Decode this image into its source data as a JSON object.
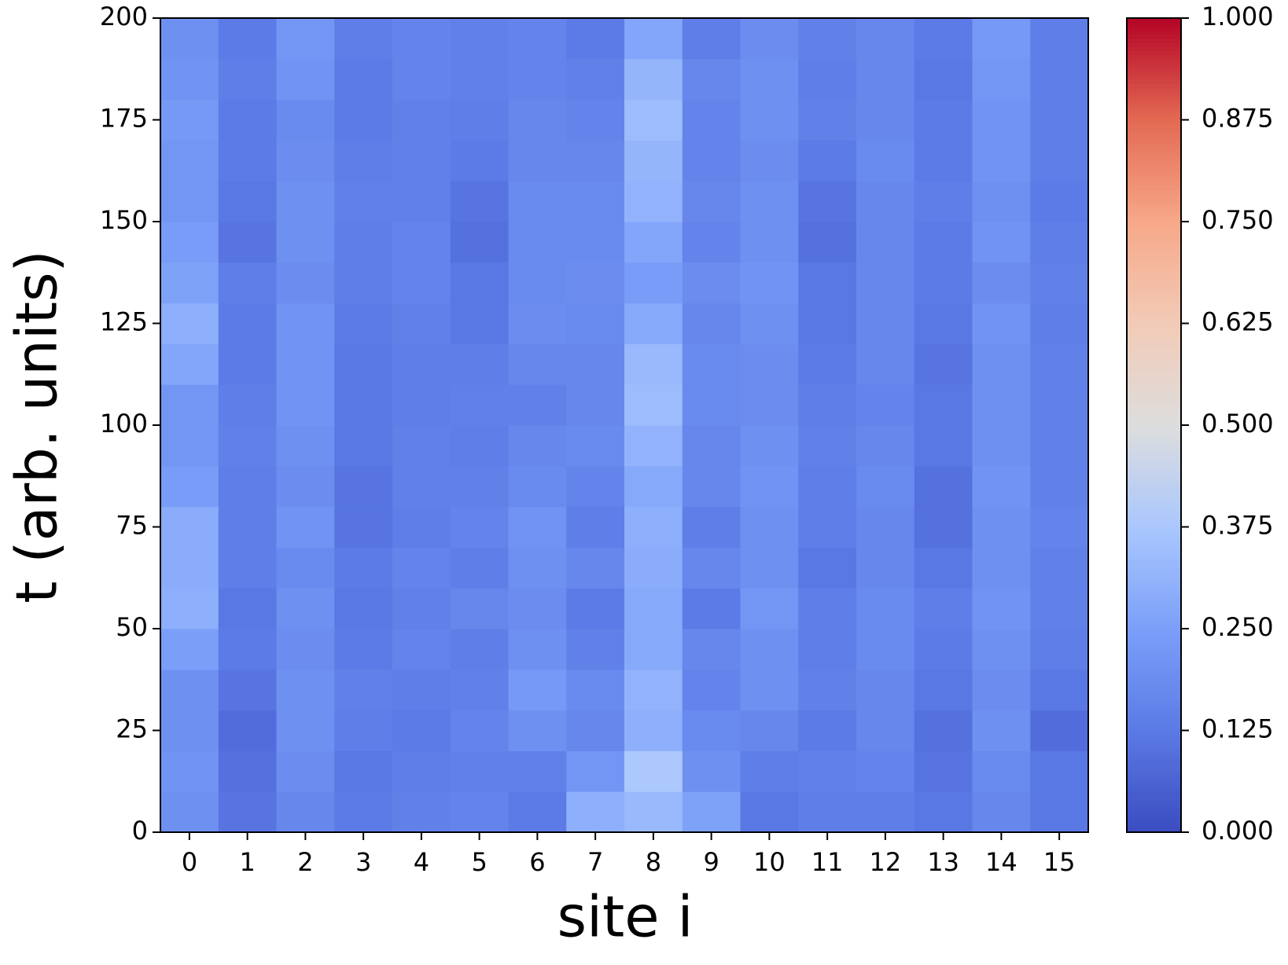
{
  "chart_data": {
    "type": "heatmap",
    "xlabel": "site i",
    "ylabel": "t (arb. units)",
    "colormap": "coolwarm",
    "x": [
      0,
      1,
      2,
      3,
      4,
      5,
      6,
      7,
      8,
      9,
      10,
      11,
      12,
      13,
      14,
      15
    ],
    "xlim": [
      -0.5,
      15.5
    ],
    "xticks": [
      0,
      1,
      2,
      3,
      4,
      5,
      6,
      7,
      8,
      9,
      10,
      11,
      12,
      13,
      14,
      15
    ],
    "y_bins": [
      0,
      10,
      20,
      30,
      40,
      50,
      60,
      70,
      80,
      90,
      100,
      110,
      120,
      130,
      140,
      150,
      160,
      170,
      180,
      190,
      200
    ],
    "ylim": [
      0,
      200
    ],
    "yticks": [
      0,
      25,
      50,
      75,
      100,
      125,
      150,
      175,
      200
    ],
    "clim": [
      0,
      1
    ],
    "cticks": [
      {
        "value": 0,
        "label": "0.000"
      },
      {
        "value": 0.125,
        "label": "0.125"
      },
      {
        "value": 0.25,
        "label": "0.250"
      },
      {
        "value": 0.375,
        "label": "0.375"
      },
      {
        "value": 0.5,
        "label": "0.500"
      },
      {
        "value": 0.625,
        "label": "0.625"
      },
      {
        "value": 0.75,
        "label": "0.750"
      },
      {
        "value": 0.875,
        "label": "0.875"
      },
      {
        "value": 1,
        "label": "1.000"
      }
    ],
    "z": [
      [
        0.2,
        0.11,
        0.17,
        0.13,
        0.15,
        0.16,
        0.13,
        0.3,
        0.33,
        0.26,
        0.12,
        0.14,
        0.14,
        0.12,
        0.17,
        0.12
      ],
      [
        0.21,
        0.1,
        0.19,
        0.12,
        0.14,
        0.15,
        0.15,
        0.22,
        0.38,
        0.2,
        0.14,
        0.15,
        0.16,
        0.11,
        0.18,
        0.12
      ],
      [
        0.2,
        0.09,
        0.2,
        0.14,
        0.13,
        0.16,
        0.2,
        0.17,
        0.3,
        0.18,
        0.17,
        0.13,
        0.17,
        0.1,
        0.2,
        0.09
      ],
      [
        0.2,
        0.11,
        0.2,
        0.15,
        0.14,
        0.15,
        0.23,
        0.18,
        0.31,
        0.16,
        0.2,
        0.15,
        0.17,
        0.12,
        0.19,
        0.12
      ],
      [
        0.25,
        0.13,
        0.19,
        0.13,
        0.16,
        0.14,
        0.2,
        0.15,
        0.28,
        0.17,
        0.2,
        0.14,
        0.18,
        0.13,
        0.2,
        0.14
      ],
      [
        0.3,
        0.12,
        0.2,
        0.12,
        0.15,
        0.17,
        0.19,
        0.13,
        0.28,
        0.13,
        0.22,
        0.14,
        0.18,
        0.14,
        0.21,
        0.15
      ],
      [
        0.29,
        0.14,
        0.18,
        0.13,
        0.16,
        0.14,
        0.2,
        0.17,
        0.29,
        0.17,
        0.2,
        0.12,
        0.17,
        0.12,
        0.2,
        0.15
      ],
      [
        0.29,
        0.14,
        0.21,
        0.11,
        0.14,
        0.16,
        0.21,
        0.14,
        0.3,
        0.14,
        0.2,
        0.14,
        0.17,
        0.1,
        0.2,
        0.16
      ],
      [
        0.24,
        0.14,
        0.19,
        0.11,
        0.15,
        0.15,
        0.18,
        0.16,
        0.28,
        0.17,
        0.21,
        0.14,
        0.18,
        0.1,
        0.21,
        0.15
      ],
      [
        0.22,
        0.15,
        0.2,
        0.12,
        0.15,
        0.14,
        0.17,
        0.18,
        0.31,
        0.17,
        0.2,
        0.15,
        0.17,
        0.12,
        0.2,
        0.15
      ],
      [
        0.22,
        0.14,
        0.21,
        0.12,
        0.14,
        0.15,
        0.15,
        0.17,
        0.34,
        0.18,
        0.19,
        0.14,
        0.16,
        0.12,
        0.2,
        0.15
      ],
      [
        0.27,
        0.13,
        0.21,
        0.12,
        0.14,
        0.14,
        0.17,
        0.17,
        0.33,
        0.18,
        0.19,
        0.13,
        0.17,
        0.11,
        0.2,
        0.15
      ],
      [
        0.3,
        0.13,
        0.21,
        0.13,
        0.15,
        0.12,
        0.19,
        0.18,
        0.28,
        0.17,
        0.2,
        0.12,
        0.17,
        0.12,
        0.21,
        0.14
      ],
      [
        0.26,
        0.14,
        0.19,
        0.14,
        0.16,
        0.12,
        0.18,
        0.19,
        0.24,
        0.19,
        0.21,
        0.12,
        0.17,
        0.13,
        0.19,
        0.15
      ],
      [
        0.24,
        0.11,
        0.2,
        0.14,
        0.16,
        0.1,
        0.18,
        0.18,
        0.27,
        0.16,
        0.2,
        0.1,
        0.17,
        0.13,
        0.21,
        0.14
      ],
      [
        0.22,
        0.12,
        0.2,
        0.15,
        0.15,
        0.11,
        0.18,
        0.18,
        0.31,
        0.17,
        0.2,
        0.11,
        0.17,
        0.14,
        0.2,
        0.13
      ],
      [
        0.22,
        0.13,
        0.19,
        0.14,
        0.15,
        0.13,
        0.17,
        0.17,
        0.32,
        0.16,
        0.19,
        0.13,
        0.18,
        0.13,
        0.21,
        0.14
      ],
      [
        0.23,
        0.13,
        0.18,
        0.13,
        0.15,
        0.14,
        0.17,
        0.16,
        0.34,
        0.16,
        0.2,
        0.15,
        0.17,
        0.13,
        0.21,
        0.14
      ],
      [
        0.21,
        0.14,
        0.21,
        0.13,
        0.16,
        0.15,
        0.16,
        0.15,
        0.32,
        0.17,
        0.2,
        0.14,
        0.17,
        0.12,
        0.22,
        0.14
      ],
      [
        0.2,
        0.13,
        0.22,
        0.14,
        0.16,
        0.15,
        0.16,
        0.13,
        0.27,
        0.14,
        0.19,
        0.15,
        0.17,
        0.13,
        0.23,
        0.14
      ]
    ]
  }
}
